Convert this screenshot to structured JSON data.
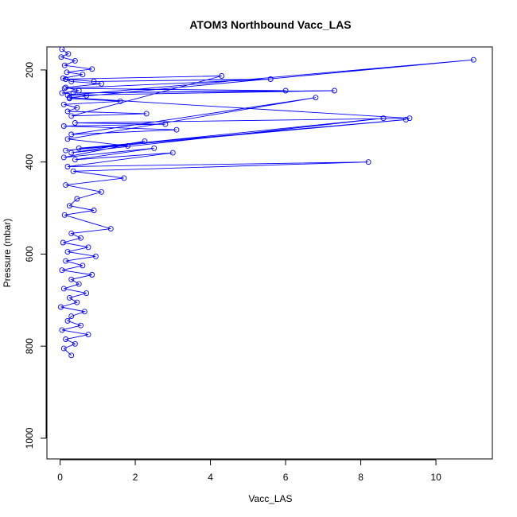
{
  "chart_data": {
    "type": "line",
    "title": "ATOM3 Northbound Vacc_LAS",
    "xlabel": "Vacc_LAS",
    "ylabel": "Pressure (mbar)",
    "xlim": [
      -0.35,
      11.5
    ],
    "ylim": [
      1045,
      150
    ],
    "y_reversed": true,
    "x_ticks": [
      0,
      2,
      4,
      6,
      8,
      10
    ],
    "y_ticks": [
      200,
      400,
      600,
      800,
      1000
    ],
    "grid": false,
    "legend": "none",
    "series_color": "#0000ff",
    "marker": "open-circle",
    "series": [
      {
        "x": [
          0.05,
          0.22,
          0.03,
          0.4,
          0.12,
          0.85,
          0.18,
          0.6,
          0.08,
          0.3,
          1.1,
          0.15,
          0.5,
          0.05,
          0.7,
          0.25,
          1.6,
          0.1,
          0.45,
          0.2,
          2.3,
          0.3,
          4.3,
          0.15,
          0.9,
          5.6,
          0.12,
          6.0,
          0.35,
          7.3,
          0.2,
          11.0,
          0.25,
          9.3,
          0.4,
          2.8,
          0.1,
          3.1,
          0.3,
          6.8,
          0.2,
          1.8,
          0.5,
          9.2,
          0.15,
          8.6,
          0.3,
          2.25,
          0.1,
          2.5,
          0.4,
          3.0,
          0.2,
          8.2,
          0.35,
          1.7,
          0.15,
          1.1,
          0.45,
          0.25,
          0.9,
          0.12,
          1.35,
          0.3,
          0.55,
          0.08,
          0.75,
          0.2,
          0.95,
          0.15,
          0.6,
          0.05,
          0.85,
          0.3,
          0.5,
          0.1,
          0.7,
          0.25,
          0.45,
          0.02,
          0.65,
          0.3,
          0.2,
          0.55,
          0.05,
          0.75,
          0.15,
          0.4,
          0.1,
          0.3
        ],
        "y": [
          155,
          165,
          172,
          180,
          190,
          198,
          205,
          210,
          218,
          225,
          230,
          238,
          245,
          250,
          256,
          262,
          268,
          275,
          282,
          290,
          295,
          300,
          213,
          220,
          225,
          220,
          240,
          245,
          250,
          245,
          255,
          178,
          260,
          305,
          315,
          318,
          322,
          330,
          340,
          260,
          350,
          365,
          370,
          308,
          375,
          305,
          380,
          355,
          390,
          370,
          395,
          380,
          410,
          400,
          420,
          435,
          450,
          465,
          480,
          495,
          505,
          515,
          545,
          555,
          565,
          575,
          585,
          595,
          605,
          615,
          625,
          635,
          645,
          655,
          665,
          675,
          685,
          695,
          705,
          715,
          725,
          735,
          745,
          755,
          765,
          775,
          785,
          795,
          805,
          820
        ]
      }
    ]
  }
}
